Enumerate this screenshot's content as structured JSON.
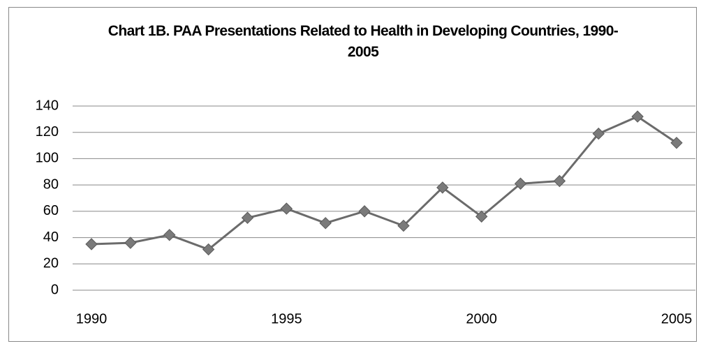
{
  "chart_data": {
    "type": "line",
    "title": "Chart 1B. PAA Presentations Related to Health in Developing Countries, 1990-2005",
    "x": [
      1990,
      1991,
      1992,
      1993,
      1994,
      1995,
      1996,
      1997,
      1998,
      1999,
      2000,
      2001,
      2002,
      2003,
      2004,
      2005
    ],
    "series": [
      {
        "name": "PAA Presentations",
        "color": "#6b6b6b",
        "values": [
          35,
          36,
          42,
          31,
          55,
          62,
          51,
          60,
          49,
          78,
          56,
          81,
          83,
          119,
          132,
          112
        ]
      }
    ],
    "xlim": [
      1990,
      2005
    ],
    "xticks": [
      1990,
      1995,
      2000,
      2005
    ],
    "ylim": [
      0,
      140
    ],
    "yticks": [
      0,
      20,
      40,
      60,
      80,
      100,
      120,
      140
    ],
    "grid": true,
    "legend": false
  }
}
